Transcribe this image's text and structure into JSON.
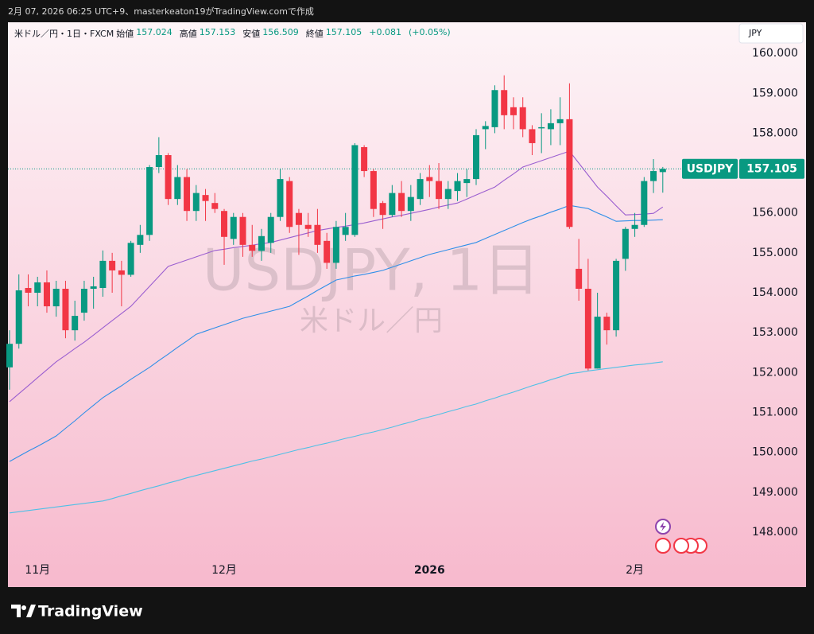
{
  "header": {
    "caption": "2月 07, 2026 06:25 UTC+9、masterkeaton19がTradingView.comで作成",
    "logo": "TradingView"
  },
  "chart_data": {
    "type": "candlestick",
    "title": "米ドル／円・1日・FXCM",
    "watermark": "USDJPY, 1日",
    "watermark_subtitle": "米ドル／円",
    "ohlc_labels": {
      "open": "始値",
      "high": "高値",
      "low": "安値",
      "close": "終値"
    },
    "change": "+0.081",
    "change_percent": "(+0.05%)",
    "currency": "JPY",
    "symbol": "USDJPY",
    "up_color": "#089981",
    "down_color": "#f23645",
    "categories": [
      null,
      null,
      null,
      "11月",
      null,
      null,
      null,
      null,
      null,
      null,
      null,
      null,
      null,
      null,
      null,
      null,
      null,
      null,
      null,
      null,
      null,
      null,
      null,
      "12月",
      null,
      null,
      null,
      null,
      null,
      null,
      null,
      null,
      null,
      null,
      null,
      null,
      null,
      null,
      null,
      null,
      null,
      null,
      null,
      null,
      null,
      "2026",
      null,
      null,
      null,
      null,
      null,
      null,
      null,
      null,
      null,
      null,
      null,
      null,
      null,
      null,
      null,
      null,
      null,
      null,
      null,
      null,
      null,
      "2月",
      null,
      null,
      null
    ],
    "open": [
      152.13,
      152.72,
      154.12,
      154.0,
      154.26,
      153.66,
      154.1,
      153.06,
      153.5,
      154.1,
      154.12,
      154.8,
      154.56,
      154.45,
      155.2,
      155.45,
      157.15,
      157.45,
      156.35,
      156.9,
      156.05,
      156.45,
      156.25,
      156.05,
      155.35,
      155.9,
      155.2,
      155.05,
      155.25,
      155.9,
      156.8,
      156.0,
      155.7,
      155.7,
      155.3,
      154.75,
      155.45,
      155.45,
      157.65,
      157.05,
      156.25,
      155.95,
      156.5,
      156.05,
      156.35,
      156.9,
      156.8,
      156.35,
      156.55,
      156.75,
      156.85,
      158.1,
      158.15,
      159.08,
      158.65,
      158.65,
      158.1,
      158.12,
      158.1,
      158.25,
      158.35,
      154.6,
      154.1,
      152.1,
      153.4,
      153.06,
      154.85,
      155.6,
      155.7,
      156.8,
      157.024
    ],
    "high": [
      153.06,
      154.46,
      154.46,
      154.4,
      154.56,
      154.3,
      154.3,
      153.8,
      154.3,
      154.4,
      155.06,
      155.0,
      154.8,
      155.3,
      155.7,
      157.2,
      157.9,
      157.5,
      157.2,
      157.1,
      156.7,
      156.6,
      156.5,
      156.1,
      156.0,
      156.0,
      155.7,
      155.6,
      156.0,
      157.1,
      156.9,
      156.1,
      156.0,
      156.1,
      155.5,
      155.8,
      156.0,
      157.75,
      157.7,
      157.1,
      156.3,
      156.7,
      156.8,
      156.7,
      157.0,
      157.2,
      157.25,
      156.8,
      157.0,
      157.1,
      158.1,
      158.3,
      159.2,
      159.45,
      158.9,
      158.9,
      158.2,
      158.5,
      158.6,
      158.9,
      159.25,
      155.35,
      154.85,
      154.0,
      153.5,
      154.85,
      155.65,
      156.0,
      156.9,
      157.35,
      157.153
    ],
    "low": [
      151.57,
      152.6,
      153.66,
      153.66,
      153.5,
      153.4,
      152.86,
      152.8,
      153.3,
      153.6,
      153.9,
      154.0,
      153.66,
      154.4,
      155.0,
      155.3,
      157.0,
      156.2,
      156.2,
      155.8,
      155.8,
      155.8,
      156.0,
      154.7,
      155.2,
      154.9,
      154.9,
      154.8,
      155.0,
      155.8,
      155.5,
      154.95,
      155.4,
      155.0,
      154.6,
      154.6,
      155.3,
      155.4,
      156.9,
      155.9,
      155.6,
      155.9,
      155.9,
      155.8,
      156.2,
      156.4,
      156.1,
      156.1,
      156.3,
      156.4,
      156.7,
      157.6,
      158.0,
      158.1,
      158.1,
      157.9,
      157.45,
      157.5,
      157.7,
      157.7,
      155.6,
      153.8,
      152.05,
      152.1,
      152.7,
      152.9,
      154.55,
      155.4,
      155.65,
      156.5,
      156.509
    ],
    "close": [
      152.72,
      154.06,
      154.0,
      154.26,
      153.66,
      154.1,
      153.06,
      153.42,
      154.1,
      154.16,
      154.8,
      154.56,
      154.45,
      155.25,
      155.45,
      157.15,
      157.45,
      156.35,
      156.9,
      156.05,
      156.5,
      156.3,
      156.1,
      155.4,
      155.9,
      155.2,
      155.05,
      155.42,
      155.9,
      156.85,
      155.65,
      155.7,
      155.6,
      155.2,
      154.75,
      155.65,
      155.65,
      157.7,
      157.05,
      156.1,
      155.95,
      156.5,
      156.05,
      156.4,
      156.85,
      156.8,
      156.35,
      156.6,
      156.8,
      156.85,
      157.95,
      158.18,
      159.08,
      158.45,
      158.45,
      158.1,
      157.75,
      158.15,
      158.25,
      158.35,
      155.65,
      154.1,
      152.1,
      153.4,
      153.06,
      154.8,
      155.6,
      155.7,
      156.8,
      157.05,
      157.105
    ],
    "overlays": [
      {
        "color": "#9b5fd0",
        "values": [
          151.27,
          151.47,
          151.67,
          151.87,
          152.07,
          152.27,
          152.43,
          152.6,
          152.76,
          152.94,
          153.12,
          153.3,
          153.48,
          153.66,
          153.91,
          154.16,
          154.41,
          154.66,
          154.74,
          154.82,
          154.9,
          154.98,
          155.06,
          155.09,
          155.13,
          155.16,
          155.19,
          155.23,
          155.26,
          155.32,
          155.38,
          155.44,
          155.5,
          155.56,
          155.6,
          155.64,
          155.67,
          155.71,
          155.75,
          155.8,
          155.85,
          155.9,
          155.94,
          155.99,
          156.04,
          156.09,
          156.15,
          156.2,
          156.25,
          156.35,
          156.45,
          156.55,
          156.65,
          156.82,
          156.98,
          157.15,
          157.23,
          157.31,
          157.39,
          157.47,
          157.55,
          157.25,
          156.95,
          156.65,
          156.42,
          156.18,
          155.95,
          155.96,
          155.97,
          155.99,
          156.15
        ]
      },
      {
        "color": "#2f8fe8",
        "values": [
          149.77,
          149.9,
          150.03,
          150.15,
          150.28,
          150.41,
          150.6,
          150.79,
          150.99,
          151.18,
          151.37,
          151.52,
          151.67,
          151.83,
          151.98,
          152.13,
          152.3,
          152.46,
          152.63,
          152.79,
          152.96,
          153.04,
          153.12,
          153.2,
          153.28,
          153.36,
          153.42,
          153.48,
          153.54,
          153.6,
          153.66,
          153.79,
          153.92,
          154.06,
          154.19,
          154.32,
          154.37,
          154.42,
          154.46,
          154.51,
          154.56,
          154.64,
          154.72,
          154.8,
          154.88,
          154.96,
          155.02,
          155.08,
          155.14,
          155.2,
          155.26,
          155.36,
          155.46,
          155.56,
          155.66,
          155.76,
          155.85,
          155.93,
          156.02,
          156.1,
          156.19,
          156.15,
          156.11,
          156.0,
          155.9,
          155.79,
          155.8,
          155.81,
          155.81,
          155.82,
          155.83
        ]
      },
      {
        "color": "#4fc0e6",
        "values": [
          148.48,
          148.51,
          148.54,
          148.57,
          148.6,
          148.63,
          148.66,
          148.69,
          148.72,
          148.75,
          148.78,
          148.84,
          148.91,
          148.97,
          149.04,
          149.1,
          149.16,
          149.23,
          149.29,
          149.36,
          149.42,
          149.48,
          149.54,
          149.6,
          149.66,
          149.72,
          149.78,
          149.83,
          149.89,
          149.95,
          150.01,
          150.07,
          150.12,
          150.18,
          150.23,
          150.29,
          150.35,
          150.4,
          150.46,
          150.51,
          150.57,
          150.63,
          150.7,
          150.76,
          150.83,
          150.89,
          150.95,
          151.02,
          151.08,
          151.15,
          151.21,
          151.29,
          151.36,
          151.44,
          151.51,
          151.59,
          151.67,
          151.74,
          151.82,
          151.89,
          151.97,
          152.0,
          152.04,
          152.07,
          152.1,
          152.13,
          152.16,
          152.19,
          152.21,
          152.24,
          152.27
        ]
      }
    ],
    "ylim": [
      147.38,
      160.78
    ],
    "yticks": [
      {
        "value": 148,
        "label": "148.000"
      },
      {
        "value": 149,
        "label": "149.000"
      },
      {
        "value": 150,
        "label": "150.000"
      },
      {
        "value": 151,
        "label": "151.000"
      },
      {
        "value": 152,
        "label": "152.000"
      },
      {
        "value": 153,
        "label": "153.000"
      },
      {
        "value": 154,
        "label": "154.000"
      },
      {
        "value": 155,
        "label": "155.000"
      },
      {
        "value": 156,
        "label": "156.000"
      },
      {
        "value": 157,
        "label": "157.000"
      },
      {
        "value": 158,
        "label": "158.000"
      },
      {
        "value": 159,
        "label": "159.000"
      },
      {
        "value": 160,
        "label": "160.000"
      }
    ]
  }
}
